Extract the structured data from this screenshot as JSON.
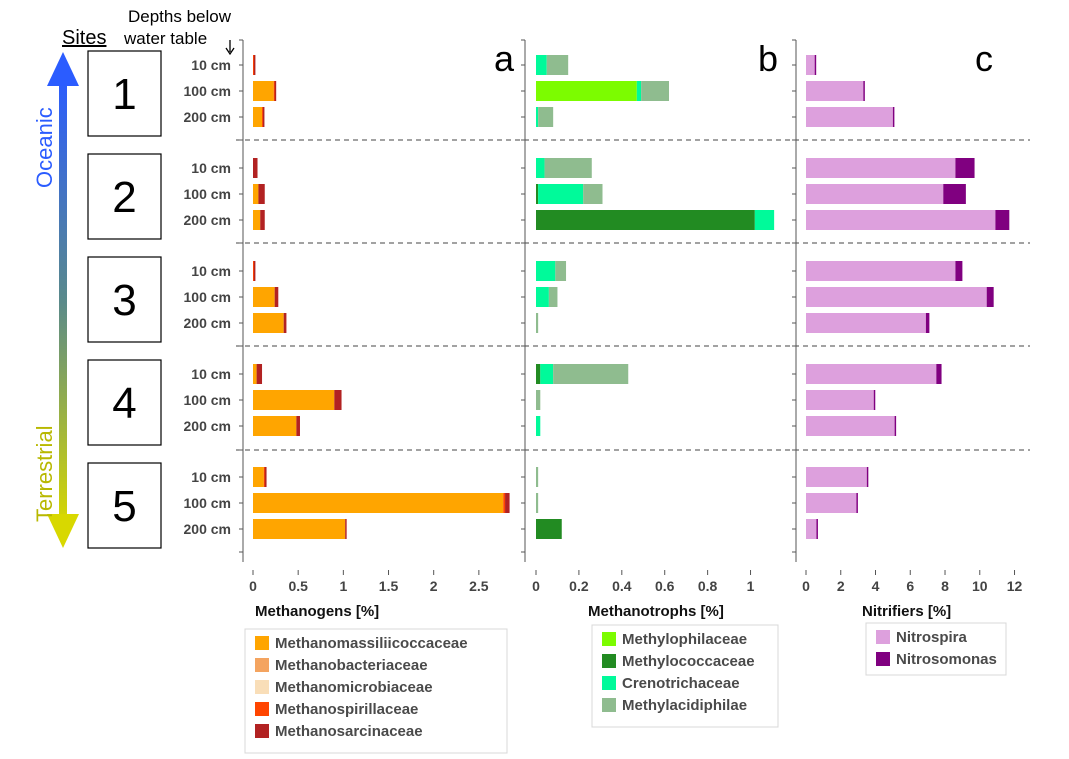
{
  "header": {
    "sites_label": "Sites",
    "depth_header_line1": "Depths below",
    "depth_header_line2": "water table"
  },
  "gradient": {
    "top_label": "Oceanic",
    "bottom_label": "Terrestrial",
    "top_color": "#2b5cff",
    "bottom_color": "#d8d800"
  },
  "sites": [
    "1",
    "2",
    "3",
    "4",
    "5"
  ],
  "depths": [
    "10 cm",
    "100 cm",
    "200 cm"
  ],
  "chart_data": [
    {
      "type": "bar",
      "orientation": "horizontal",
      "stacked": true,
      "panel_letter": "a",
      "xlabel": "Methanogens [%]",
      "xlim": [
        0,
        2.9
      ],
      "xticks": [
        0,
        0.5,
        1,
        1.5,
        2,
        2.5
      ],
      "xtick_labels": [
        "0",
        "0.5",
        "1",
        "1.5",
        "2",
        "2.5"
      ],
      "legend": [
        {
          "name": "Methanomassiliicoccaceae",
          "color": "#FFA500"
        },
        {
          "name": "Methanobacteriaceae",
          "color": "#F4A460"
        },
        {
          "name": "Methanomicrobiaceae",
          "color": "#F9DEB8"
        },
        {
          "name": "Methanospirillaceae",
          "color": "#FF4500"
        },
        {
          "name": "Methanosarcinaceae",
          "color": "#B22222"
        }
      ],
      "categories": [
        "Site 1 10 cm",
        "Site 1 100 cm",
        "Site 1 200 cm",
        "Site 2 10 cm",
        "Site 2 100 cm",
        "Site 2 200 cm",
        "Site 3 10 cm",
        "Site 3 100 cm",
        "Site 3 200 cm",
        "Site 4 10 cm",
        "Site 4 100 cm",
        "Site 4 200 cm",
        "Site 5 10 cm",
        "Site 5 100 cm",
        "Site 5 200 cm"
      ],
      "series": [
        {
          "name": "Methanomassiliicoccaceae",
          "color": "#FFA500",
          "values": [
            0,
            0.23,
            0.1,
            0,
            0.06,
            0.08,
            0,
            0.24,
            0.34,
            0.04,
            0.9,
            0.48,
            0.12,
            2.77,
            1.02
          ]
        },
        {
          "name": "Methanobacteriaceae",
          "color": "#F4A460",
          "values": [
            0,
            0,
            0,
            0,
            0,
            0,
            0,
            0,
            0,
            0,
            0,
            0,
            0,
            0,
            0
          ]
        },
        {
          "name": "Methanomicrobiaceae",
          "color": "#F9DEB8",
          "values": [
            0,
            0,
            0,
            0,
            0,
            0,
            0,
            0,
            0,
            0,
            0,
            0,
            0,
            0,
            0
          ]
        },
        {
          "name": "Methanospirillaceae",
          "color": "#FF4500",
          "values": [
            0.01,
            0.01,
            0.01,
            0,
            0,
            0,
            0.01,
            0,
            0,
            0,
            0,
            0,
            0.01,
            0.02,
            0
          ]
        },
        {
          "name": "Methanosarcinaceae",
          "color": "#B22222",
          "values": [
            0.01,
            0.01,
            0.01,
            0.05,
            0.07,
            0.05,
            0.01,
            0.04,
            0.03,
            0.06,
            0.08,
            0.04,
            0.02,
            0.05,
            0.01
          ]
        }
      ]
    },
    {
      "type": "bar",
      "orientation": "horizontal",
      "stacked": true,
      "panel_letter": "b",
      "xlabel": "Methanotrophs [%]",
      "xlim": [
        0,
        1.17
      ],
      "xticks": [
        0,
        0.2,
        0.4,
        0.6,
        0.8,
        1
      ],
      "xtick_labels": [
        "0",
        "0.2",
        "0.4",
        "0.6",
        "0.8",
        "1"
      ],
      "legend": [
        {
          "name": "Methylophilaceae",
          "color": "#7CFC00"
        },
        {
          "name": "Methylococcaceae",
          "color": "#228B22"
        },
        {
          "name": "Crenotrichaceae",
          "color": "#00FA9A"
        },
        {
          "name": "Methylacidiphilae",
          "color": "#8FBC8F"
        }
      ],
      "categories": [
        "Site 1 10 cm",
        "Site 1 100 cm",
        "Site 1 200 cm",
        "Site 2 10 cm",
        "Site 2 100 cm",
        "Site 2 200 cm",
        "Site 3 10 cm",
        "Site 3 100 cm",
        "Site 3 200 cm",
        "Site 4 10 cm",
        "Site 4 100 cm",
        "Site 4 200 cm",
        "Site 5 10 cm",
        "Site 5 100 cm",
        "Site 5 200 cm"
      ],
      "series": [
        {
          "name": "Methylophilaceae",
          "color": "#7CFC00",
          "values": [
            0,
            0.47,
            0,
            0,
            0,
            0,
            0,
            0,
            0,
            0,
            0,
            0,
            0,
            0,
            0
          ]
        },
        {
          "name": "Methylococcaceae",
          "color": "#228B22",
          "values": [
            0,
            0,
            0,
            0,
            0.01,
            1.02,
            0,
            0,
            0,
            0.02,
            0,
            0,
            0,
            0,
            0.12
          ]
        },
        {
          "name": "Crenotrichaceae",
          "color": "#00FA9A",
          "values": [
            0.05,
            0.02,
            0.01,
            0.04,
            0.21,
            0.09,
            0.09,
            0.06,
            0,
            0.06,
            0,
            0.02,
            0,
            0,
            0
          ]
        },
        {
          "name": "Methylacidiphilae",
          "color": "#8FBC8F",
          "values": [
            0.1,
            0.13,
            0.07,
            0.22,
            0.09,
            0,
            0.05,
            0.04,
            0.01,
            0.35,
            0.02,
            0,
            0.01,
            0.01,
            0
          ]
        }
      ]
    },
    {
      "type": "bar",
      "orientation": "horizontal",
      "stacked": true,
      "panel_letter": "c",
      "xlabel": "Nitrifiers [%]",
      "xlim": [
        0,
        12.2
      ],
      "xticks": [
        0,
        2,
        4,
        6,
        8,
        10,
        12
      ],
      "xtick_labels": [
        "0",
        "2",
        "4",
        "6",
        "8",
        "10",
        "12"
      ],
      "legend": [
        {
          "name": "Nitrospira",
          "color": "#DDA0DD"
        },
        {
          "name": "Nitrosomonas",
          "color": "#800080"
        }
      ],
      "categories": [
        "Site 1 10 cm",
        "Site 1 100 cm",
        "Site 1 200 cm",
        "Site 2 10 cm",
        "Site 2 100 cm",
        "Site 2 200 cm",
        "Site 3 10 cm",
        "Site 3 100 cm",
        "Site 3 200 cm",
        "Site 4 10 cm",
        "Site 4 100 cm",
        "Site 4 200 cm",
        "Site 5 10 cm",
        "Site 5 100 cm",
        "Site 5 200 cm"
      ],
      "series": [
        {
          "name": "Nitrospira",
          "color": "#DDA0DD",
          "values": [
            0.5,
            3.3,
            5.0,
            8.6,
            7.9,
            10.9,
            8.6,
            10.4,
            6.9,
            7.5,
            3.9,
            5.1,
            3.5,
            2.9,
            0.6
          ]
        },
        {
          "name": "Nitrosomonas",
          "color": "#800080",
          "values": [
            0.05,
            0.08,
            0.05,
            1.1,
            1.3,
            0.8,
            0.4,
            0.4,
            0.2,
            0.3,
            0.05,
            0.05,
            0.05,
            0.05,
            0.05
          ]
        }
      ]
    }
  ]
}
